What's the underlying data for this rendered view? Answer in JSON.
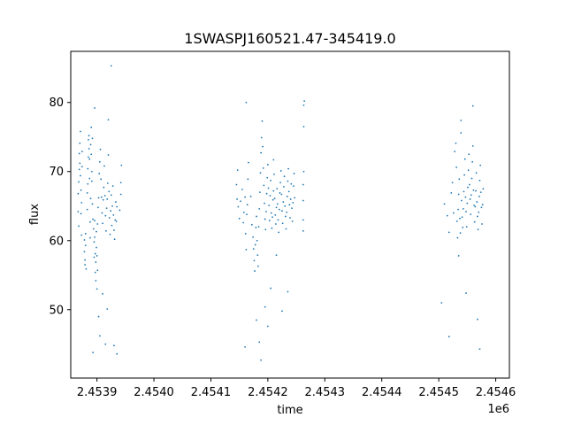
{
  "chart_data": {
    "type": "scatter",
    "title": "1SWASPJ160521.47-345419.0",
    "xlabel": "time",
    "ylabel": "flux",
    "x_offset_label": "1e6",
    "xlim": [
      2453854,
      2454624
    ],
    "ylim": [
      40.1,
      87.4
    ],
    "xticks": [
      2453900,
      2454000,
      2454100,
      2454200,
      2454300,
      2454400,
      2454500,
      2454600
    ],
    "xtick_labels": [
      "2.4539",
      "2.4540",
      "2.4541",
      "2.4542",
      "2.4543",
      "2.4544",
      "2.4545",
      "2.4546"
    ],
    "yticks": [
      50,
      60,
      70,
      80
    ],
    "ytick_labels": [
      "50",
      "60",
      "70",
      "80"
    ],
    "grid": false,
    "marker_color": "#1f77b4",
    "points": [
      [
        2453867,
        64.2
      ],
      [
        2453867,
        66.8
      ],
      [
        2453868,
        62.1
      ],
      [
        2453868,
        68.5
      ],
      [
        2453869,
        70.3
      ],
      [
        2453869,
        72.6
      ],
      [
        2453870,
        74.1
      ],
      [
        2453870,
        71.2
      ],
      [
        2453871,
        69.4
      ],
      [
        2453871,
        75.8
      ],
      [
        2453872,
        67.3
      ],
      [
        2453872,
        63.9
      ],
      [
        2453873,
        60.8
      ],
      [
        2453873,
        65.5
      ],
      [
        2453874,
        72.9
      ],
      [
        2453874,
        70.7
      ],
      [
        2453878,
        58.4
      ],
      [
        2453878,
        60.1
      ],
      [
        2453879,
        57.2
      ],
      [
        2453879,
        56.5
      ],
      [
        2453880,
        59.3
      ],
      [
        2453880,
        61.0
      ],
      [
        2453881,
        55.9
      ],
      [
        2453883,
        64.5
      ],
      [
        2453883,
        66.9
      ],
      [
        2453884,
        68.2
      ],
      [
        2453884,
        70.4
      ],
      [
        2453885,
        72.1
      ],
      [
        2453885,
        74.6
      ],
      [
        2453886,
        73.3
      ],
      [
        2453886,
        75.2
      ],
      [
        2453887,
        71.8
      ],
      [
        2453887,
        69.0
      ],
      [
        2453888,
        62.7
      ],
      [
        2453888,
        60.4
      ],
      [
        2453889,
        66.1
      ],
      [
        2453889,
        73.9
      ],
      [
        2453890,
        76.4
      ],
      [
        2453890,
        72.5
      ],
      [
        2453891,
        70.0
      ],
      [
        2453891,
        68.6
      ],
      [
        2453892,
        74.8
      ],
      [
        2453892,
        65.3
      ],
      [
        2453893,
        63.1
      ],
      [
        2453894,
        61.7
      ],
      [
        2453895,
        59.8
      ],
      [
        2453895,
        57.6
      ],
      [
        2453896,
        60.5
      ],
      [
        2453896,
        62.9
      ],
      [
        2453897,
        58.1
      ],
      [
        2453897,
        55.4
      ],
      [
        2453898,
        54.2
      ],
      [
        2453898,
        56.9
      ],
      [
        2453899,
        59.0
      ],
      [
        2453899,
        61.3
      ],
      [
        2453900,
        57.8
      ],
      [
        2453900,
        53.0
      ],
      [
        2453901,
        55.7
      ],
      [
        2453901,
        62.4
      ],
      [
        2453902,
        64.8
      ],
      [
        2453903,
        66.2
      ],
      [
        2453904,
        69.7
      ],
      [
        2453905,
        71.4
      ],
      [
        2453906,
        73.2
      ],
      [
        2453907,
        68.9
      ],
      [
        2453908,
        66.3
      ],
      [
        2453909,
        64.0
      ],
      [
        2453910,
        62.5
      ],
      [
        2453911,
        65.9
      ],
      [
        2453912,
        67.7
      ],
      [
        2453913,
        70.8
      ],
      [
        2453914,
        66.5
      ],
      [
        2453915,
        63.6
      ],
      [
        2453916,
        61.4
      ],
      [
        2453917,
        64.7
      ],
      [
        2453918,
        66.0
      ],
      [
        2453919,
        68.3
      ],
      [
        2453920,
        72.4
      ],
      [
        2453921,
        67.1
      ],
      [
        2453922,
        63.3
      ],
      [
        2453923,
        60.9
      ],
      [
        2453924,
        64.3
      ],
      [
        2453925,
        66.6
      ],
      [
        2453926,
        62.2
      ],
      [
        2453927,
        65.0
      ],
      [
        2453928,
        67.9
      ],
      [
        2453929,
        63.7
      ],
      [
        2453930,
        61.5
      ],
      [
        2453931,
        60.2
      ],
      [
        2453932,
        63.0
      ],
      [
        2453933,
        65.6
      ],
      [
        2453934,
        62.8
      ],
      [
        2453935,
        64.9
      ],
      [
        2453903,
        49.0
      ],
      [
        2453905,
        46.2
      ],
      [
        2453910,
        52.3
      ],
      [
        2453915,
        45.0
      ],
      [
        2453918,
        50.1
      ],
      [
        2453920,
        77.5
      ],
      [
        2453925,
        85.3
      ],
      [
        2453930,
        44.8
      ],
      [
        2453935,
        43.6
      ],
      [
        2453942,
        68.4
      ],
      [
        2453942,
        66.7
      ],
      [
        2453943,
        70.9
      ],
      [
        2453940,
        64.4
      ],
      [
        2453896,
        79.2
      ],
      [
        2453893,
        43.8
      ],
      [
        2454145,
        68.1
      ],
      [
        2454146,
        66.0
      ],
      [
        2454147,
        70.2
      ],
      [
        2454148,
        64.9
      ],
      [
        2454150,
        63.2
      ],
      [
        2454152,
        65.7
      ],
      [
        2454155,
        67.4
      ],
      [
        2454157,
        62.6
      ],
      [
        2454158,
        64.1
      ],
      [
        2454160,
        66.3
      ],
      [
        2454161,
        61.0
      ],
      [
        2454162,
        58.7
      ],
      [
        2454163,
        63.8
      ],
      [
        2454164,
        65.2
      ],
      [
        2454165,
        68.9
      ],
      [
        2454166,
        71.3
      ],
      [
        2454160,
        44.6
      ],
      [
        2454162,
        80.0
      ],
      [
        2454170,
        66.4
      ],
      [
        2454172,
        62.3
      ],
      [
        2454174,
        60.5
      ],
      [
        2454175,
        58.8
      ],
      [
        2454176,
        57.1
      ],
      [
        2454177,
        55.6
      ],
      [
        2454178,
        59.4
      ],
      [
        2454179,
        61.9
      ],
      [
        2454180,
        63.5
      ],
      [
        2454181,
        60.0
      ],
      [
        2454182,
        57.9
      ],
      [
        2454183,
        56.3
      ],
      [
        2454184,
        62.0
      ],
      [
        2454185,
        64.6
      ],
      [
        2454186,
        67.0
      ],
      [
        2454187,
        69.8
      ],
      [
        2454188,
        72.7
      ],
      [
        2454189,
        74.9
      ],
      [
        2454190,
        77.3
      ],
      [
        2454191,
        73.6
      ],
      [
        2454192,
        70.5
      ],
      [
        2454193,
        68.0
      ],
      [
        2454194,
        65.4
      ],
      [
        2454195,
        63.1
      ],
      [
        2454196,
        61.6
      ],
      [
        2454197,
        64.2
      ],
      [
        2454198,
        66.8
      ],
      [
        2454199,
        69.1
      ],
      [
        2454200,
        71.0
      ],
      [
        2454201,
        67.6
      ],
      [
        2454202,
        65.1
      ],
      [
        2454203,
        62.9
      ],
      [
        2454204,
        66.5
      ],
      [
        2454205,
        68.7
      ],
      [
        2454206,
        64.0
      ],
      [
        2454207,
        61.8
      ],
      [
        2454208,
        63.4
      ],
      [
        2454209,
        65.9
      ],
      [
        2454210,
        67.2
      ],
      [
        2454211,
        69.6
      ],
      [
        2454212,
        66.1
      ],
      [
        2454213,
        63.7
      ],
      [
        2454214,
        62.4
      ],
      [
        2454215,
        64.8
      ],
      [
        2454216,
        67.5
      ],
      [
        2454217,
        65.3
      ],
      [
        2454218,
        63.0
      ],
      [
        2454219,
        61.2
      ],
      [
        2454220,
        64.5
      ],
      [
        2454221,
        66.9
      ],
      [
        2454222,
        68.4
      ],
      [
        2454223,
        70.1
      ],
      [
        2454224,
        66.7
      ],
      [
        2454225,
        64.3
      ],
      [
        2454226,
        62.5
      ],
      [
        2454227,
        65.6
      ],
      [
        2454228,
        67.8
      ],
      [
        2454229,
        69.3
      ],
      [
        2454230,
        65.0
      ],
      [
        2454231,
        63.5
      ],
      [
        2454232,
        61.7
      ],
      [
        2454233,
        64.1
      ],
      [
        2454234,
        66.4
      ],
      [
        2454235,
        68.6
      ],
      [
        2454236,
        70.4
      ],
      [
        2454237,
        67.1
      ],
      [
        2454238,
        65.2
      ],
      [
        2454239,
        63.3
      ],
      [
        2454240,
        66.0
      ],
      [
        2454241,
        68.2
      ],
      [
        2454242,
        64.7
      ],
      [
        2454243,
        62.8
      ],
      [
        2454244,
        65.5
      ],
      [
        2454245,
        67.9
      ],
      [
        2454246,
        69.7
      ],
      [
        2454247,
        66.2
      ],
      [
        2454180,
        48.5
      ],
      [
        2454185,
        45.3
      ],
      [
        2454188,
        42.7
      ],
      [
        2454195,
        50.4
      ],
      [
        2454200,
        47.6
      ],
      [
        2454205,
        53.1
      ],
      [
        2454210,
        71.7
      ],
      [
        2454215,
        57.9
      ],
      [
        2454225,
        49.8
      ],
      [
        2454235,
        52.6
      ],
      [
        2454262,
        63.0
      ],
      [
        2454262,
        65.8
      ],
      [
        2454262,
        68.1
      ],
      [
        2454263,
        79.6
      ],
      [
        2454264,
        80.2
      ],
      [
        2454263,
        76.5
      ],
      [
        2454262,
        61.4
      ],
      [
        2454263,
        70.0
      ],
      [
        2454510,
        65.3
      ],
      [
        2454515,
        63.6
      ],
      [
        2454518,
        61.2
      ],
      [
        2454522,
        66.9
      ],
      [
        2454524,
        68.4
      ],
      [
        2454526,
        64.0
      ],
      [
        2454528,
        72.9
      ],
      [
        2454530,
        74.1
      ],
      [
        2454531,
        70.6
      ],
      [
        2454532,
        62.8
      ],
      [
        2454533,
        60.4
      ],
      [
        2454534,
        64.5
      ],
      [
        2454535,
        66.7
      ],
      [
        2454536,
        68.9
      ],
      [
        2454537,
        63.2
      ],
      [
        2454538,
        61.1
      ],
      [
        2454539,
        77.4
      ],
      [
        2454539,
        75.6
      ],
      [
        2454540,
        65.8
      ],
      [
        2454541,
        63.4
      ],
      [
        2454542,
        61.9
      ],
      [
        2454543,
        64.6
      ],
      [
        2454544,
        67.1
      ],
      [
        2454545,
        69.5
      ],
      [
        2454546,
        71.8
      ],
      [
        2454547,
        66.3
      ],
      [
        2454548,
        64.2
      ],
      [
        2454549,
        62.0
      ],
      [
        2454550,
        65.4
      ],
      [
        2454551,
        67.7
      ],
      [
        2454552,
        70.2
      ],
      [
        2454553,
        72.5
      ],
      [
        2454554,
        68.1
      ],
      [
        2454555,
        66.0
      ],
      [
        2454556,
        63.8
      ],
      [
        2454557,
        66.6
      ],
      [
        2454558,
        69.0
      ],
      [
        2454559,
        71.4
      ],
      [
        2454560,
        73.7
      ],
      [
        2454561,
        67.3
      ],
      [
        2454562,
        65.1
      ],
      [
        2454563,
        62.7
      ],
      [
        2454564,
        64.9
      ],
      [
        2454565,
        67.2
      ],
      [
        2454566,
        69.8
      ],
      [
        2454567,
        65.6
      ],
      [
        2454568,
        63.5
      ],
      [
        2454569,
        61.6
      ],
      [
        2454570,
        64.1
      ],
      [
        2454571,
        66.4
      ],
      [
        2454572,
        68.7
      ],
      [
        2454573,
        70.9
      ],
      [
        2454574,
        67.0
      ],
      [
        2454575,
        64.8
      ],
      [
        2454576,
        62.4
      ],
      [
        2454577,
        65.2
      ],
      [
        2454578,
        67.5
      ],
      [
        2454505,
        51.0
      ],
      [
        2454518,
        46.1
      ],
      [
        2454535,
        57.8
      ],
      [
        2454548,
        52.4
      ],
      [
        2454560,
        79.5
      ],
      [
        2454568,
        48.6
      ],
      [
        2454572,
        44.3
      ]
    ]
  }
}
